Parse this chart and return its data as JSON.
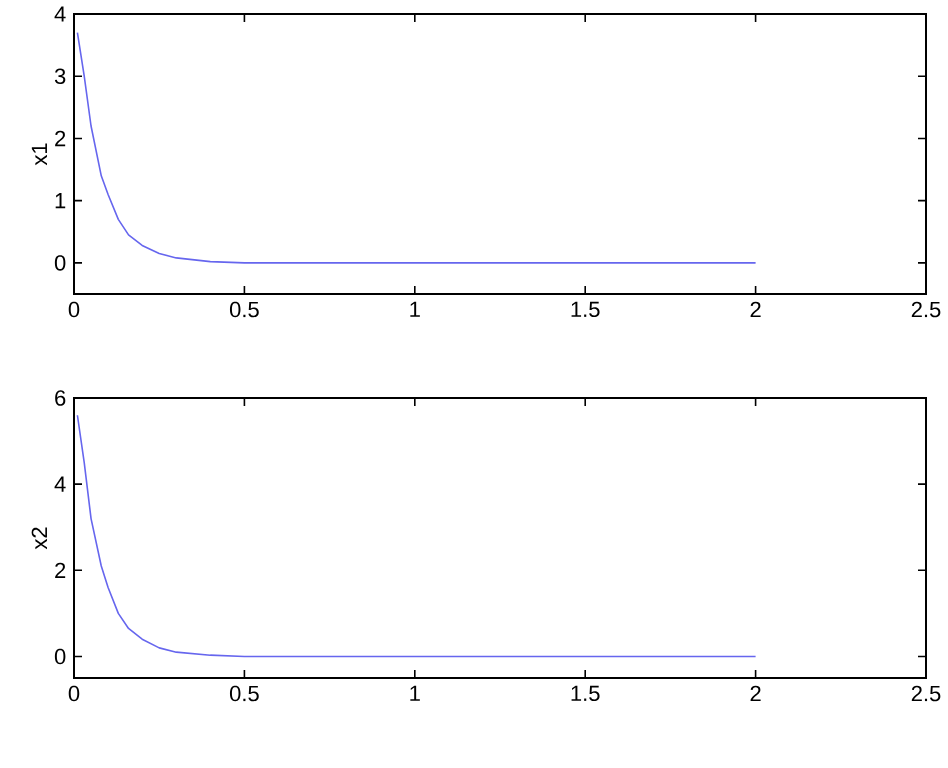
{
  "chart_data": [
    {
      "type": "line",
      "ylabel": "x1",
      "xlim": [
        0,
        2.5
      ],
      "ylim": [
        -0.5,
        4
      ],
      "xticks": [
        0,
        0.5,
        1,
        1.5,
        2,
        2.5
      ],
      "yticks": [
        0,
        1,
        2,
        3,
        4
      ],
      "grid": false,
      "marker": "none",
      "series": [
        {
          "color": "#6666ee",
          "x": [
            0.01,
            0.03,
            0.05,
            0.08,
            0.1,
            0.13,
            0.16,
            0.2,
            0.25,
            0.3,
            0.4,
            0.5,
            1,
            1.5,
            2
          ],
          "values": [
            3.7,
            3.0,
            2.2,
            1.4,
            1.1,
            0.7,
            0.45,
            0.28,
            0.15,
            0.08,
            0.02,
            0,
            0,
            0,
            0
          ]
        }
      ]
    },
    {
      "type": "line",
      "ylabel": "x2",
      "xlim": [
        0,
        2.5
      ],
      "ylim": [
        -0.5,
        6
      ],
      "xticks": [
        0,
        0.5,
        1,
        1.5,
        2,
        2.5
      ],
      "yticks": [
        0,
        2,
        4,
        6
      ],
      "grid": false,
      "marker": "none",
      "series": [
        {
          "color": "#6666ee",
          "x": [
            0.01,
            0.03,
            0.05,
            0.08,
            0.1,
            0.13,
            0.16,
            0.2,
            0.25,
            0.3,
            0.4,
            0.5,
            1,
            1.5,
            2
          ],
          "values": [
            5.6,
            4.5,
            3.2,
            2.1,
            1.6,
            1.0,
            0.65,
            0.4,
            0.2,
            0.1,
            0.03,
            0,
            0,
            0,
            0
          ]
        }
      ]
    }
  ]
}
